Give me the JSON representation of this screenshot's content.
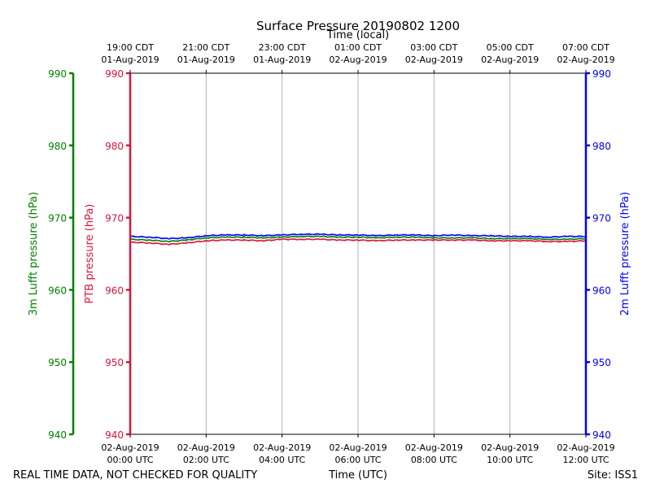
{
  "chart_data": {
    "type": "line",
    "title": "Surface Pressure 20190802 1200",
    "top_xlabel": "Time (local)",
    "xlabel": "Time (UTC)",
    "ylabel_left_outer": "3m Lufft pressure (hPa)",
    "ylabel_left_inner": "PTB pressure (hPa)",
    "ylabel_right": "2m Lufft pressure (hPa)",
    "ylim": [
      940,
      990
    ],
    "yticks": [
      "940",
      "950",
      "960",
      "970",
      "980",
      "990"
    ],
    "xlim_hours": [
      0,
      12
    ],
    "x_ticks_utc": [
      {
        "date": "02-Aug-2019",
        "time": "00:00 UTC"
      },
      {
        "date": "02-Aug-2019",
        "time": "02:00 UTC"
      },
      {
        "date": "02-Aug-2019",
        "time": "04:00 UTC"
      },
      {
        "date": "02-Aug-2019",
        "time": "06:00 UTC"
      },
      {
        "date": "02-Aug-2019",
        "time": "08:00 UTC"
      },
      {
        "date": "02-Aug-2019",
        "time": "10:00 UTC"
      },
      {
        "date": "02-Aug-2019",
        "time": "12:00 UTC"
      }
    ],
    "x_ticks_local": [
      {
        "time": "19:00 CDT",
        "date": "01-Aug-2019"
      },
      {
        "time": "21:00 CDT",
        "date": "01-Aug-2019"
      },
      {
        "time": "23:00 CDT",
        "date": "01-Aug-2019"
      },
      {
        "time": "01:00 CDT",
        "date": "02-Aug-2019"
      },
      {
        "time": "03:00 CDT",
        "date": "02-Aug-2019"
      },
      {
        "time": "05:00 CDT",
        "date": "02-Aug-2019"
      },
      {
        "time": "07:00 CDT",
        "date": "02-Aug-2019"
      }
    ],
    "grid": "vertical",
    "colors": {
      "ptb": "#dc143c",
      "lufft3m": "#008000",
      "lufft2m": "#0000ff"
    },
    "series": [
      {
        "color": "#dc143c",
        "x": [
          0,
          0.5,
          1,
          1.5,
          2,
          2.5,
          3,
          3.5,
          4,
          4.5,
          5,
          5.5,
          6,
          6.5,
          7,
          7.5,
          8,
          8.5,
          9,
          9.5,
          10,
          10.5,
          11,
          11.5,
          12
        ],
        "values": [
          966.6,
          966.5,
          966.3,
          966.5,
          966.8,
          966.9,
          966.9,
          966.8,
          967.0,
          967.0,
          967.0,
          966.9,
          966.9,
          966.8,
          966.9,
          966.9,
          966.9,
          966.9,
          966.9,
          966.8,
          966.8,
          966.8,
          966.7,
          966.7,
          966.8
        ]
      },
      {
        "color": "#008000",
        "x": [
          0,
          0.5,
          1,
          1.5,
          2,
          2.5,
          3,
          3.5,
          4,
          4.5,
          5,
          5.5,
          6,
          6.5,
          7,
          7.5,
          8,
          8.5,
          9,
          9.5,
          10,
          10.5,
          11,
          11.5,
          12
        ],
        "values": [
          967.0,
          966.9,
          966.7,
          966.9,
          967.2,
          967.3,
          967.3,
          967.2,
          967.3,
          967.4,
          967.4,
          967.3,
          967.3,
          967.2,
          967.3,
          967.3,
          967.2,
          967.2,
          967.2,
          967.1,
          967.1,
          967.1,
          967.0,
          967.0,
          967.1
        ]
      },
      {
        "color": "#0000ff",
        "x": [
          0,
          0.5,
          1,
          1.5,
          2,
          2.5,
          3,
          3.5,
          4,
          4.5,
          5,
          5.5,
          6,
          6.5,
          7,
          7.5,
          8,
          8.5,
          9,
          9.5,
          10,
          10.5,
          11,
          11.5,
          12
        ],
        "values": [
          967.4,
          967.3,
          967.1,
          967.2,
          967.5,
          967.6,
          967.6,
          967.5,
          967.6,
          967.7,
          967.7,
          967.6,
          967.6,
          967.5,
          967.6,
          967.6,
          967.5,
          967.6,
          967.5,
          967.5,
          967.4,
          967.4,
          967.3,
          967.4,
          967.4
        ]
      }
    ]
  },
  "footer": {
    "disclaimer": "REAL TIME DATA, NOT CHECKED FOR QUALITY",
    "site": "Site: ISS1"
  }
}
